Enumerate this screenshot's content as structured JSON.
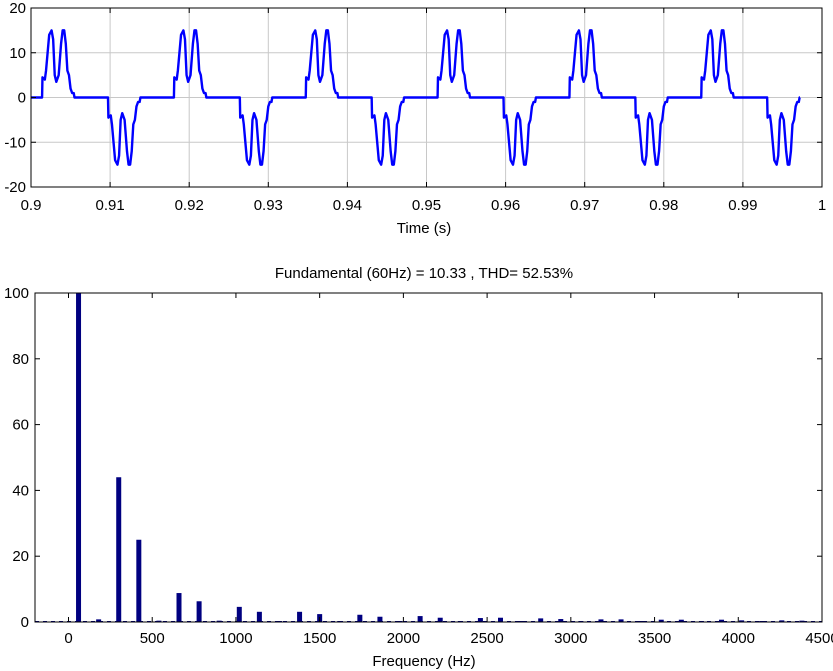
{
  "chart_data": [
    {
      "type": "line",
      "title": "",
      "xlabel": "Time (s)",
      "ylabel": "",
      "xlim": [
        0.9,
        1.0
      ],
      "ylim": [
        -20,
        20
      ],
      "grid": true,
      "xticks": [
        0.9,
        0.91,
        0.92,
        0.93,
        0.94,
        0.95,
        0.96,
        0.97,
        0.98,
        0.99,
        1
      ],
      "xtick_labels": [
        "0.9",
        "0.91",
        "0.92",
        "0.93",
        "0.94",
        "0.95",
        "0.96",
        "0.97",
        "0.98",
        "0.99",
        "1"
      ],
      "yticks": [
        -20,
        -10,
        0,
        10,
        20
      ],
      "ytick_labels": [
        "-20",
        "-10",
        "0",
        "10",
        "20"
      ],
      "line_color": "#0000ff",
      "series": [
        {
          "name": "",
          "period": 0.016667,
          "start": 0.9,
          "end": 1.0,
          "half_wave": {
            "t": [
              0,
              0.0014,
              0.00145,
              0.00175,
              0.0019,
              0.0021,
              0.0023,
              0.0026,
              0.0028,
              0.003,
              0.0032,
              0.0035,
              0.0038,
              0.004,
              0.0042,
              0.0044,
              0.0046,
              0.0048,
              0.005,
              0.0052,
              0.0054,
              0.0055,
              0.00555,
              0.008333
            ],
            "v": [
              0,
              0,
              4.5,
              4,
              6,
              10,
              14,
              15,
              13,
              5,
              3.5,
              5,
              12,
              15,
              15,
              12,
              6,
              5,
              2,
              1,
              1,
              0,
              0,
              0
            ]
          }
        }
      ]
    },
    {
      "type": "bar",
      "title": "Fundamental (60Hz) = 10.33 , THD= 52.53%",
      "xlabel": "Frequency (Hz)",
      "ylabel": "",
      "xlim": [
        -200,
        4500
      ],
      "ylim": [
        0,
        100
      ],
      "grid": false,
      "xticks": [
        0,
        500,
        1000,
        1500,
        2000,
        2500,
        3000,
        3500,
        4000,
        4500
      ],
      "xtick_labels": [
        "0",
        "500",
        "1000",
        "1500",
        "2000",
        "2500",
        "3000",
        "3500",
        "4000",
        "4500"
      ],
      "yticks": [
        0,
        20,
        40,
        60,
        80,
        100
      ],
      "ytick_labels": [
        "0",
        "20",
        "40",
        "60",
        "80",
        "100"
      ],
      "bar_color": "#000080",
      "x": [
        60,
        180,
        300,
        420,
        540,
        660,
        780,
        900,
        1020,
        1140,
        1260,
        1380,
        1500,
        1620,
        1740,
        1860,
        1980,
        2100,
        2220,
        2340,
        2460,
        2580,
        2700,
        2820,
        2940,
        3060,
        3180,
        3300,
        3420,
        3540,
        3660,
        3780,
        3900,
        4020,
        4140,
        4260,
        4380
      ],
      "values": [
        100,
        0.8,
        44,
        25,
        0.4,
        8.8,
        6.3,
        0.4,
        4.6,
        3.1,
        0.3,
        3.1,
        2.4,
        0.3,
        2.2,
        1.6,
        0.2,
        1.8,
        1.3,
        0.2,
        1.2,
        1.3,
        0.2,
        1.1,
        0.9,
        0.2,
        0.8,
        0.8,
        0.1,
        0.7,
        0.7,
        0.1,
        0.7,
        0.5,
        0.1,
        0.5,
        0.4
      ]
    }
  ]
}
